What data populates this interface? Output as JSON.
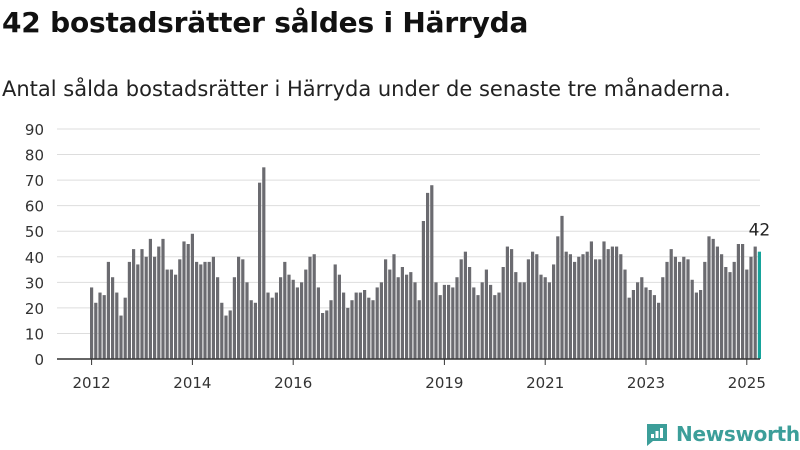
{
  "header": {
    "title": "42 bostadsrätter såldes i Härryda",
    "subtitle": "Antal sålda bostadsrätter i Härryda under de senaste tre månaderna."
  },
  "brand": {
    "name": "Newsworthy",
    "color": "#3c9e99"
  },
  "colors": {
    "bar": "#6b6b70",
    "highlight": "#16a39b",
    "grid": "#dddddd",
    "axis": "#333333"
  },
  "chart_data": {
    "type": "bar",
    "title": "42 bostadsrätter såldes i Härryda",
    "xlabel": "",
    "ylabel": "",
    "ylim": [
      0,
      90
    ],
    "yticks": [
      0,
      10,
      20,
      30,
      40,
      50,
      60,
      70,
      80,
      90
    ],
    "x_tick_labels": [
      "2012",
      "2014",
      "2016",
      "2019",
      "2021",
      "2023",
      "2025"
    ],
    "grid": true,
    "legend": "none",
    "highlight_label": "42",
    "values": [
      28,
      22,
      26,
      25,
      38,
      32,
      26,
      17,
      24,
      38,
      43,
      37,
      43,
      40,
      47,
      40,
      44,
      47,
      35,
      35,
      33,
      39,
      46,
      45,
      49,
      38,
      37,
      38,
      38,
      40,
      32,
      22,
      17,
      19,
      32,
      40,
      39,
      30,
      23,
      22,
      69,
      75,
      26,
      24,
      26,
      32,
      38,
      33,
      31,
      28,
      30,
      35,
      40,
      41,
      28,
      18,
      19,
      23,
      37,
      33,
      26,
      20,
      23,
      26,
      26,
      27,
      24,
      23,
      28,
      30,
      39,
      35,
      41,
      32,
      36,
      33,
      34,
      30,
      23,
      54,
      65,
      68,
      30,
      25,
      29,
      29,
      28,
      32,
      39,
      42,
      36,
      28,
      25,
      30,
      35,
      29,
      25,
      26,
      36,
      44,
      43,
      34,
      30,
      30,
      39,
      42,
      41,
      33,
      32,
      30,
      37,
      48,
      56,
      42,
      41,
      38,
      40,
      41,
      42,
      46,
      39,
      39,
      46,
      43,
      44,
      44,
      41,
      35,
      24,
      27,
      30,
      32,
      28,
      27,
      25,
      22,
      32,
      38,
      43,
      40,
      38,
      40,
      39,
      31,
      26,
      27,
      38,
      48,
      47,
      44,
      41,
      36,
      34,
      38,
      45,
      45,
      35,
      40,
      44,
      42
    ]
  }
}
